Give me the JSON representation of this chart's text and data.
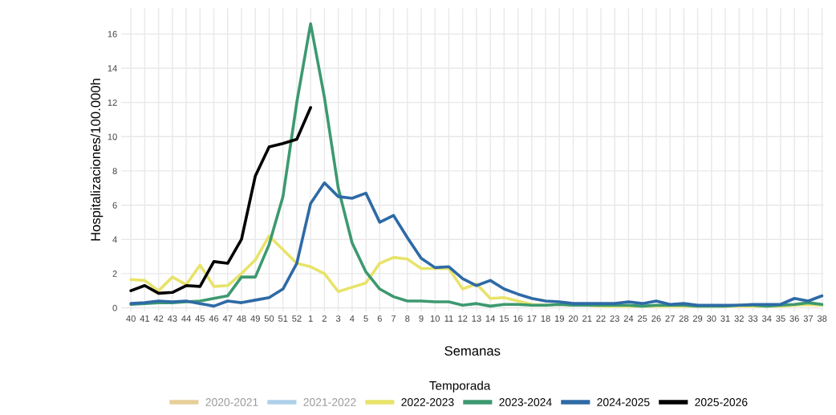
{
  "chart_data": {
    "type": "line",
    "xlabel": "Semanas",
    "ylabel": "Hospitalizaciones/100.000h",
    "legend_title": "Temporada",
    "legend": "bottom",
    "grid": true,
    "ylim": [
      -0.2,
      17.5
    ],
    "yticks": [
      0,
      2,
      4,
      6,
      8,
      10,
      12,
      14,
      16
    ],
    "categories": [
      "40",
      "41",
      "42",
      "43",
      "44",
      "45",
      "46",
      "47",
      "48",
      "49",
      "50",
      "51",
      "52",
      "1",
      "2",
      "3",
      "4",
      "5",
      "6",
      "7",
      "8",
      "9",
      "10",
      "11",
      "12",
      "13",
      "14",
      "15",
      "16",
      "17",
      "18",
      "19",
      "20",
      "21",
      "22",
      "23",
      "24",
      "25",
      "26",
      "27",
      "28",
      "29",
      "30",
      "31",
      "32",
      "33",
      "34",
      "35",
      "36",
      "37",
      "38"
    ],
    "series": [
      {
        "name": "2020-2021",
        "color": "#e6cf9a",
        "values": [
          null,
          null,
          null,
          null,
          null,
          null,
          null,
          null,
          null,
          null,
          null,
          null,
          null,
          null,
          null,
          null,
          null,
          null,
          null,
          null,
          null,
          null,
          null,
          null,
          null,
          null,
          null,
          null,
          null,
          null,
          null,
          null,
          null,
          null,
          null,
          null,
          null,
          null,
          null,
          null,
          null,
          null,
          null,
          null,
          null,
          null,
          null,
          null,
          null,
          null,
          null
        ]
      },
      {
        "name": "2021-2022",
        "color": "#aed0ea",
        "values": [
          null,
          null,
          null,
          null,
          null,
          null,
          null,
          null,
          null,
          null,
          null,
          null,
          null,
          null,
          null,
          null,
          null,
          null,
          null,
          null,
          null,
          null,
          null,
          null,
          null,
          null,
          null,
          null,
          null,
          null,
          null,
          null,
          null,
          null,
          null,
          null,
          null,
          null,
          null,
          null,
          null,
          null,
          null,
          null,
          null,
          null,
          null,
          null,
          null,
          null,
          null
        ]
      },
      {
        "name": "2022-2023",
        "color": "#e8e36a",
        "values": [
          1.65,
          1.6,
          1.0,
          1.8,
          1.35,
          2.5,
          1.25,
          1.3,
          2.0,
          2.8,
          4.2,
          3.4,
          2.6,
          2.4,
          2.0,
          0.95,
          1.2,
          1.45,
          2.6,
          2.95,
          2.85,
          2.3,
          2.3,
          2.3,
          1.1,
          1.4,
          0.55,
          0.6,
          0.4,
          0.2,
          0.15,
          0.2,
          0.15,
          0.15,
          0.1,
          0.1,
          0.1,
          0.1,
          0.1,
          0.1,
          0.1,
          0.1,
          0.1,
          0.1,
          0.1,
          0.1,
          0.1,
          0.1,
          0.15,
          0.2,
          0.15
        ]
      },
      {
        "name": "2023-2024",
        "color": "#3d9970",
        "values": [
          0.2,
          0.25,
          0.3,
          0.3,
          0.35,
          0.4,
          0.55,
          0.7,
          1.8,
          1.8,
          3.7,
          6.5,
          12.0,
          16.6,
          12.3,
          7.0,
          3.8,
          2.1,
          1.1,
          0.65,
          0.4,
          0.4,
          0.35,
          0.35,
          0.15,
          0.25,
          0.1,
          0.2,
          0.2,
          0.15,
          0.15,
          0.2,
          0.15,
          0.15,
          0.15,
          0.15,
          0.15,
          0.1,
          0.15,
          0.15,
          0.15,
          0.1,
          0.1,
          0.1,
          0.15,
          0.15,
          0.1,
          0.15,
          0.2,
          0.3,
          0.2
        ]
      },
      {
        "name": "2024-2025",
        "color": "#2e6aa6",
        "values": [
          0.25,
          0.3,
          0.4,
          0.35,
          0.4,
          0.25,
          0.1,
          0.4,
          0.3,
          0.45,
          0.6,
          1.1,
          2.6,
          6.1,
          7.3,
          6.5,
          6.4,
          6.7,
          5.0,
          5.4,
          4.1,
          2.9,
          2.35,
          2.4,
          1.7,
          1.3,
          1.6,
          1.1,
          0.8,
          0.55,
          0.4,
          0.35,
          0.25,
          0.25,
          0.25,
          0.25,
          0.35,
          0.25,
          0.4,
          0.2,
          0.25,
          0.15,
          0.15,
          0.15,
          0.15,
          0.2,
          0.2,
          0.2,
          0.55,
          0.4,
          0.7
        ]
      },
      {
        "name": "2025-2026",
        "color": "#000000",
        "values": [
          1.0,
          1.3,
          0.85,
          0.9,
          1.3,
          1.25,
          2.7,
          2.6,
          4.0,
          7.7,
          9.4,
          9.6,
          9.85,
          11.7,
          null,
          null,
          null,
          null,
          null,
          null,
          null,
          null,
          null,
          null,
          null,
          null,
          null,
          null,
          null,
          null,
          null,
          null,
          null,
          null,
          null,
          null,
          null,
          null,
          null,
          null,
          null,
          null,
          null,
          null,
          null,
          null,
          null,
          null,
          null,
          null,
          null
        ]
      }
    ]
  }
}
